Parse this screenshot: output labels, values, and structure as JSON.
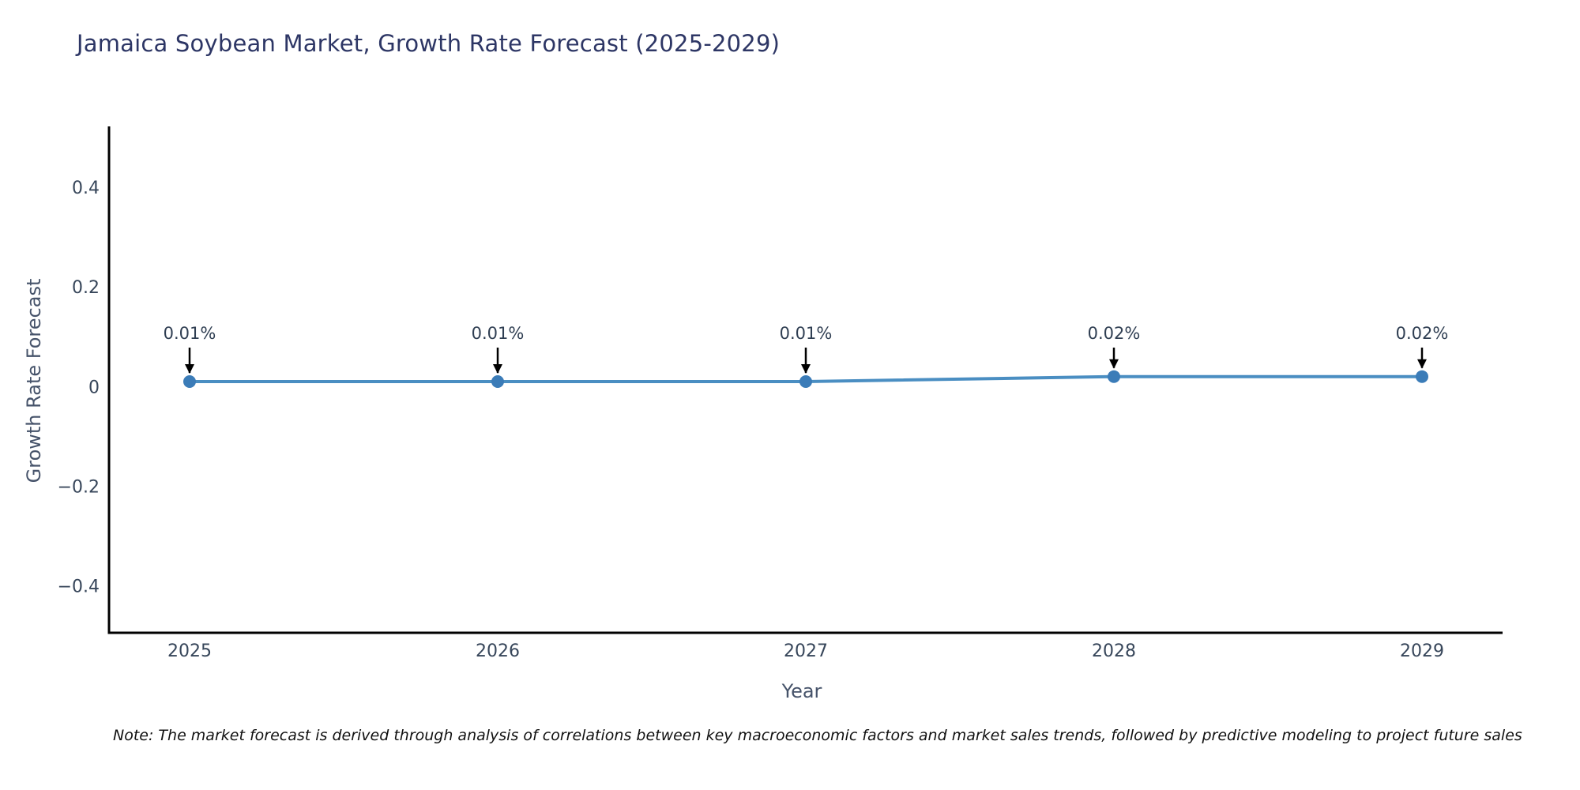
{
  "chart_data": {
    "type": "line",
    "title": "Jamaica Soybean Market, Growth Rate Forecast (2025-2029)",
    "xlabel": "Year",
    "ylabel": "Growth Rate Forecast",
    "x": [
      "2025",
      "2026",
      "2027",
      "2028",
      "2029"
    ],
    "series": [
      {
        "name": "Growth Rate Forecast",
        "values": [
          0.01,
          0.01,
          0.01,
          0.02,
          0.02
        ]
      }
    ],
    "point_labels": [
      "0.01%",
      "0.01%",
      "0.01%",
      "0.02%",
      "0.02%"
    ],
    "yticks": [
      0.4,
      0.2,
      0,
      -0.2,
      -0.4
    ],
    "ytick_labels": [
      "0.4",
      "0.2",
      "0",
      "−0.2",
      "−0.4"
    ],
    "ylim": [
      -0.494,
      0.522
    ],
    "grid": false,
    "legend": false,
    "colors": {
      "line": "#4a8ec2",
      "marker": "#3b7cb8",
      "axis_line": "#000000",
      "tick_text": "#37465a",
      "annotation_text": "#2f3e52",
      "arrow": "#000000"
    }
  },
  "note": {
    "text": "Note: The market forecast is derived through analysis of correlations between key macroeconomic factors and market sales trends, followed by predictive modeling to project future sales"
  }
}
